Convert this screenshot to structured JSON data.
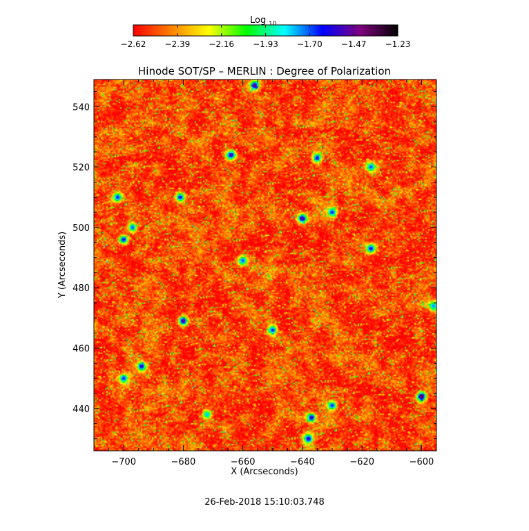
{
  "chart_data": {
    "type": "heatmap",
    "title": "Hinode SOT/SP – MERLIN : Degree of Polarization",
    "xlabel": "X (Arcseconds)",
    "ylabel": "Y (Arcseconds)",
    "xlim": [
      -710,
      -595
    ],
    "ylim": [
      426,
      549
    ],
    "x_ticks": [
      -700,
      -680,
      -660,
      -640,
      -620,
      -600
    ],
    "y_ticks": [
      440,
      460,
      480,
      500,
      520,
      540
    ],
    "colorbar": {
      "label_main": "Log",
      "label_sub": "10",
      "range": [
        -2.62,
        -1.23
      ],
      "ticks": [
        "-2.62",
        "-2.39",
        "-2.16",
        "-1.93",
        "-1.70",
        "-1.47",
        "-1.23"
      ],
      "colors": [
        "#ff0000",
        "#ff8000",
        "#ffff00",
        "#00ff00",
        "#00ffff",
        "#0000ff",
        "#800080",
        "#000000"
      ]
    },
    "background_level": -2.52,
    "features": [
      {
        "x": -656,
        "y": 547,
        "v": -1.4
      },
      {
        "x": -664,
        "y": 524,
        "v": -1.45
      },
      {
        "x": -635,
        "y": 523,
        "v": -1.55
      },
      {
        "x": -702,
        "y": 510,
        "v": -1.6
      },
      {
        "x": -681,
        "y": 510,
        "v": -1.55
      },
      {
        "x": -697,
        "y": 500,
        "v": -1.65
      },
      {
        "x": -700,
        "y": 496,
        "v": -1.55
      },
      {
        "x": -640,
        "y": 503,
        "v": -1.45
      },
      {
        "x": -630,
        "y": 505,
        "v": -1.6
      },
      {
        "x": -617,
        "y": 493,
        "v": -1.55
      },
      {
        "x": -660,
        "y": 489,
        "v": -1.65
      },
      {
        "x": -680,
        "y": 469,
        "v": -1.4
      },
      {
        "x": -650,
        "y": 466,
        "v": -1.6
      },
      {
        "x": -694,
        "y": 454,
        "v": -1.5
      },
      {
        "x": -700,
        "y": 450,
        "v": -1.6
      },
      {
        "x": -600,
        "y": 444,
        "v": -1.3
      },
      {
        "x": -637,
        "y": 437,
        "v": -1.45
      },
      {
        "x": -630,
        "y": 441,
        "v": -1.6
      },
      {
        "x": -638,
        "y": 430,
        "v": -1.5
      },
      {
        "x": -617,
        "y": 520,
        "v": -1.65
      },
      {
        "x": -596,
        "y": 474,
        "v": -1.7
      },
      {
        "x": -672,
        "y": 438,
        "v": -1.75
      }
    ]
  },
  "timestamp": "26-Feb-2018 15:10:03.748"
}
